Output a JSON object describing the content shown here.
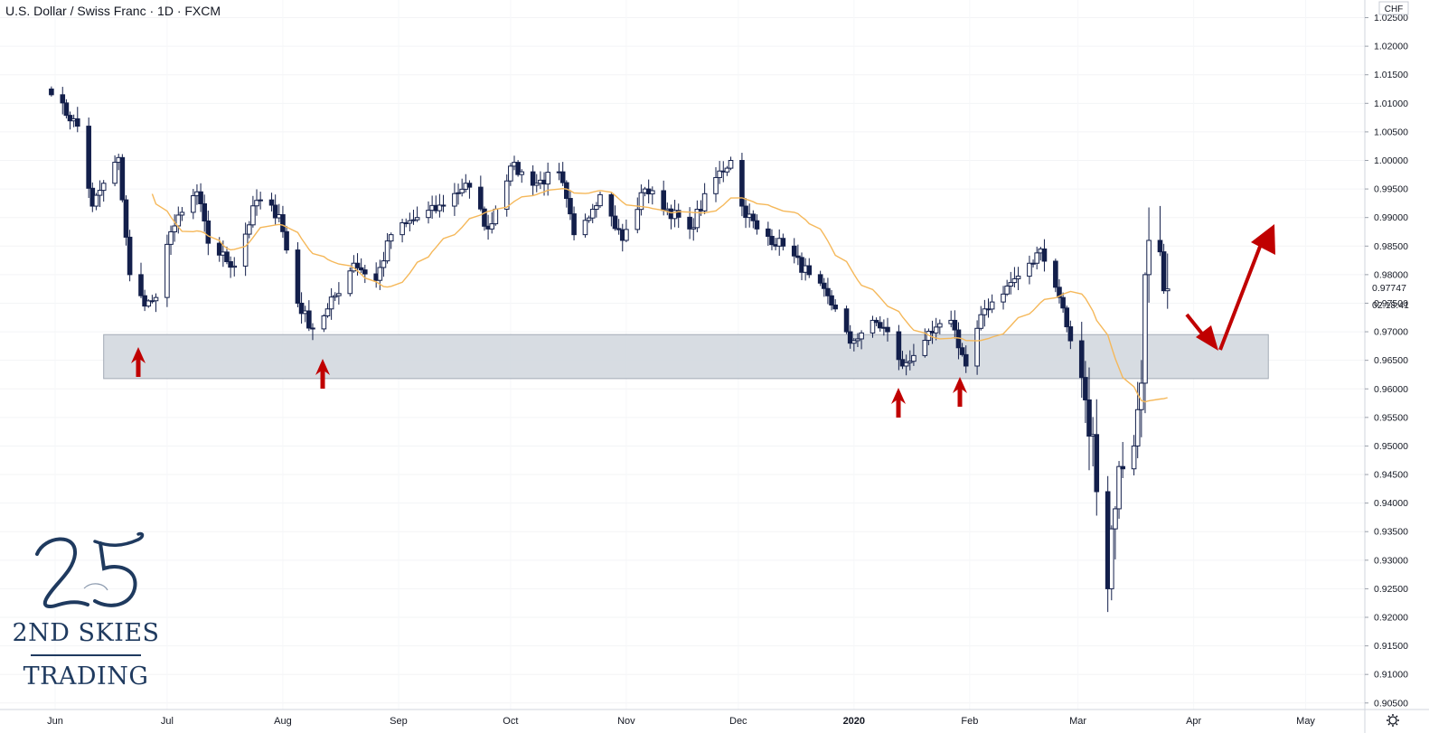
{
  "title": "U.S. Dollar / Swiss Franc · 1D · FXCM",
  "currency_label": "CHF",
  "countdown": "02:18:41",
  "settings_icon": "gear-icon",
  "logo": {
    "number": "25",
    "name": "2ND SKIES",
    "subtitle": "TRADING"
  },
  "colors": {
    "bull_fill": "#ffffff",
    "bear_fill": "#131f4b",
    "candle_stroke": "#131f4b",
    "moving_average": "#f5b85a",
    "zone_fill": "#d3d8df",
    "zone_stroke": "#a3abb6",
    "arrow": "#c00000"
  },
  "chart_data": {
    "type": "candlestick",
    "symbol": "U.S. Dollar / Swiss Franc",
    "interval": "1D",
    "source": "FXCM",
    "x_tick_labels": [
      "Jun",
      "Jul",
      "Aug",
      "Sep",
      "Oct",
      "Nov",
      "Dec",
      "2020",
      "Feb",
      "Mar",
      "Apr",
      "May"
    ],
    "y_tick_labels": [
      "1.02500",
      "1.02000",
      "1.01500",
      "1.01000",
      "1.00500",
      "1.00000",
      "0.99500",
      "0.99000",
      "0.98500",
      "0.98000",
      "0.97500",
      "0.97000",
      "0.96500",
      "0.96000",
      "0.95500",
      "0.95000",
      "0.94500",
      "0.94000",
      "0.93500",
      "0.93000",
      "0.92500",
      "0.92000",
      "0.91500",
      "0.91000",
      "0.90500"
    ],
    "ylim": [
      0.905,
      1.0265
    ],
    "last_price": "0.97747",
    "support_zone": {
      "low": 0.9618,
      "high": 0.9695
    },
    "highlighted_lows": [
      "Jun",
      "Aug",
      "2020",
      "Feb"
    ],
    "key_points": [
      {
        "date": "2019-05-31",
        "price": 1.0115
      },
      {
        "date": "2019-06-07",
        "price": 1.006
      },
      {
        "date": "2019-06-11",
        "price": 0.992
      },
      {
        "date": "2019-06-14",
        "price": 0.996
      },
      {
        "date": "2019-06-18",
        "price": 1.0005
      },
      {
        "date": "2019-06-21",
        "price": 0.98
      },
      {
        "date": "2019-06-25",
        "price": 0.9745
      },
      {
        "date": "2019-06-28",
        "price": 0.976
      },
      {
        "date": "2019-07-02",
        "price": 0.9875
      },
      {
        "date": "2019-07-09",
        "price": 0.9945
      },
      {
        "date": "2019-07-12",
        "price": 0.9855
      },
      {
        "date": "2019-07-19",
        "price": 0.9815
      },
      {
        "date": "2019-07-25",
        "price": 0.993
      },
      {
        "date": "2019-07-31",
        "price": 0.9905
      },
      {
        "date": "2019-08-05",
        "price": 0.975
      },
      {
        "date": "2019-08-09",
        "price": 0.9705
      },
      {
        "date": "2019-08-13",
        "price": 0.974
      },
      {
        "date": "2019-08-20",
        "price": 0.982
      },
      {
        "date": "2019-08-26",
        "price": 0.979
      },
      {
        "date": "2019-08-30",
        "price": 0.987
      },
      {
        "date": "2019-09-06",
        "price": 0.99
      },
      {
        "date": "2019-09-13",
        "price": 0.992
      },
      {
        "date": "2019-09-19",
        "price": 0.996
      },
      {
        "date": "2019-09-25",
        "price": 0.988
      },
      {
        "date": "2019-10-01",
        "price": 0.999
      },
      {
        "date": "2019-10-08",
        "price": 0.996
      },
      {
        "date": "2019-10-14",
        "price": 0.998
      },
      {
        "date": "2019-10-18",
        "price": 0.987
      },
      {
        "date": "2019-10-25",
        "price": 0.994
      },
      {
        "date": "2019-10-31",
        "price": 0.986
      },
      {
        "date": "2019-11-06",
        "price": 0.995
      },
      {
        "date": "2019-11-12",
        "price": 0.9915
      },
      {
        "date": "2019-11-18",
        "price": 0.988
      },
      {
        "date": "2019-11-25",
        "price": 0.997
      },
      {
        "date": "2019-11-29",
        "price": 1.0
      },
      {
        "date": "2019-12-02",
        "price": 0.992
      },
      {
        "date": "2019-12-06",
        "price": 0.988
      },
      {
        "date": "2019-12-13",
        "price": 0.985
      },
      {
        "date": "2019-12-20",
        "price": 0.98
      },
      {
        "date": "2019-12-27",
        "price": 0.974
      },
      {
        "date": "2019-12-31",
        "price": 0.968
      },
      {
        "date": "2020-01-06",
        "price": 0.972
      },
      {
        "date": "2020-01-10",
        "price": 0.97
      },
      {
        "date": "2020-01-14",
        "price": 0.964
      },
      {
        "date": "2020-01-20",
        "price": 0.9685
      },
      {
        "date": "2020-01-27",
        "price": 0.972
      },
      {
        "date": "2020-01-31",
        "price": 0.964
      },
      {
        "date": "2020-02-05",
        "price": 0.974
      },
      {
        "date": "2020-02-11",
        "price": 0.978
      },
      {
        "date": "2020-02-18",
        "price": 0.982
      },
      {
        "date": "2020-02-20",
        "price": 0.9845
      },
      {
        "date": "2020-02-25",
        "price": 0.976
      },
      {
        "date": "2020-03-02",
        "price": 0.962
      },
      {
        "date": "2020-03-05",
        "price": 0.952
      },
      {
        "date": "2020-03-06",
        "price": 0.942
      },
      {
        "date": "2020-03-09",
        "price": 0.925
      },
      {
        "date": "2020-03-11",
        "price": 0.939
      },
      {
        "date": "2020-03-13",
        "price": 0.946
      },
      {
        "date": "2020-03-16",
        "price": 0.95
      },
      {
        "date": "2020-03-18",
        "price": 0.961
      },
      {
        "date": "2020-03-19",
        "price": 0.98
      },
      {
        "date": "2020-03-20",
        "price": 0.986
      },
      {
        "date": "2020-03-23",
        "price": 0.984
      },
      {
        "date": "2020-03-25",
        "price": 0.9775
      }
    ]
  }
}
